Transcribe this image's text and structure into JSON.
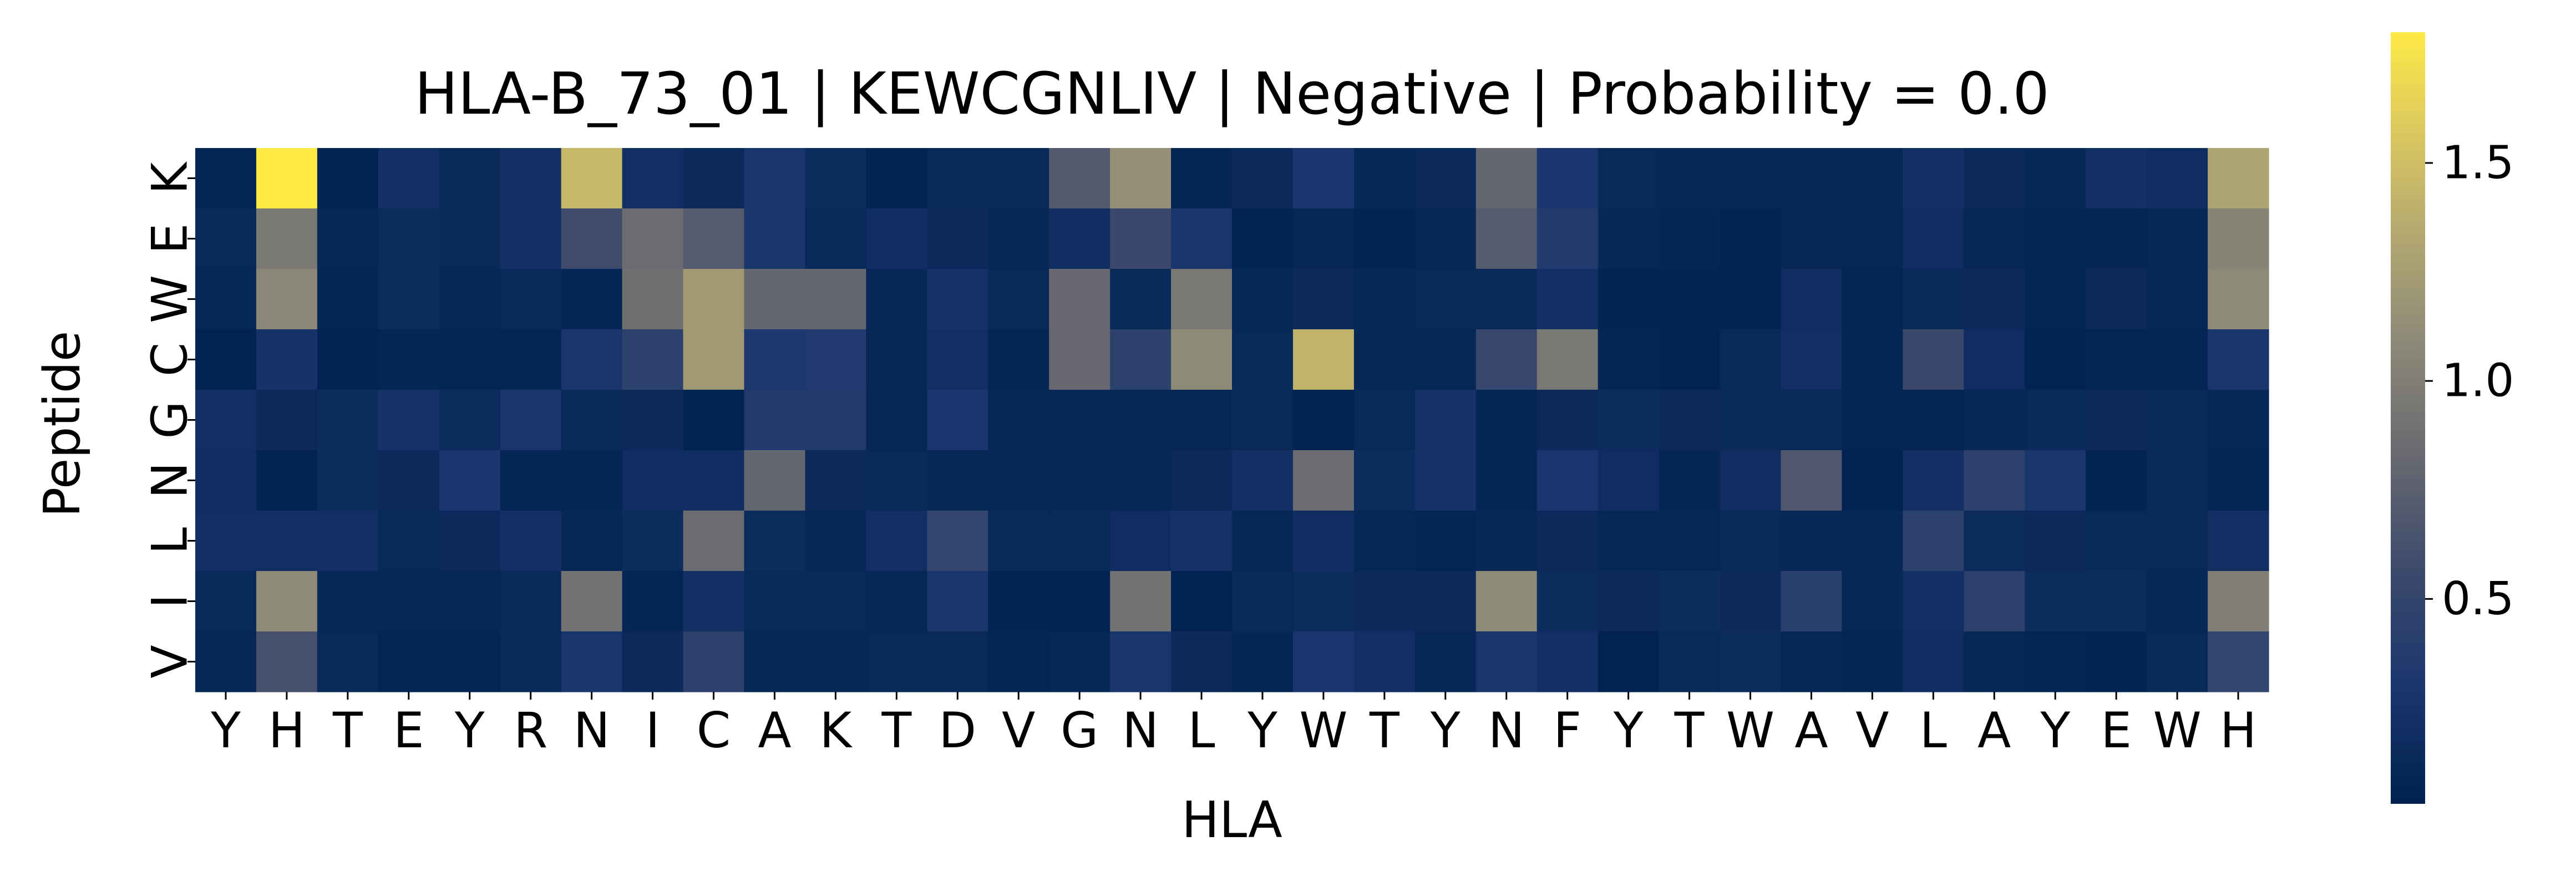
{
  "chart_data": {
    "type": "heatmap",
    "title": "HLA-B_73_01 | KEWCGNLIV | Negative | Probability = 0.0",
    "xlabel": "HLA",
    "ylabel": "Peptide",
    "x": [
      "Y",
      "H",
      "T",
      "E",
      "Y",
      "R",
      "N",
      "I",
      "C",
      "A",
      "K",
      "T",
      "D",
      "V",
      "G",
      "N",
      "L",
      "Y",
      "W",
      "T",
      "Y",
      "N",
      "F",
      "Y",
      "T",
      "W",
      "A",
      "V",
      "L",
      "A",
      "Y",
      "E",
      "W",
      "H"
    ],
    "y": [
      "K",
      "E",
      "W",
      "C",
      "G",
      "N",
      "L",
      "I",
      "V"
    ],
    "colorbar": {
      "min": 0.03,
      "max": 1.8,
      "ticks": [
        0.5,
        1.0,
        1.5
      ],
      "tick_labels": [
        "0.5",
        "1.0",
        "1.5"
      ],
      "colormap": "cividis"
    },
    "values": [
      [
        0.08,
        1.8,
        0.06,
        0.22,
        0.12,
        0.22,
        1.45,
        0.2,
        0.14,
        0.28,
        0.16,
        0.06,
        0.12,
        0.12,
        0.7,
        1.15,
        0.08,
        0.14,
        0.3,
        0.1,
        0.14,
        0.8,
        0.3,
        0.12,
        0.1,
        0.1,
        0.1,
        0.1,
        0.22,
        0.14,
        0.1,
        0.22,
        0.18,
        1.3
      ],
      [
        0.12,
        0.95,
        0.1,
        0.16,
        0.12,
        0.22,
        0.58,
        0.85,
        0.72,
        0.28,
        0.12,
        0.18,
        0.14,
        0.1,
        0.18,
        0.55,
        0.28,
        0.06,
        0.1,
        0.06,
        0.1,
        0.72,
        0.36,
        0.1,
        0.08,
        0.06,
        0.1,
        0.1,
        0.18,
        0.1,
        0.08,
        0.08,
        0.1,
        1.05
      ],
      [
        0.1,
        1.08,
        0.08,
        0.16,
        0.1,
        0.12,
        0.08,
        0.88,
        1.22,
        0.8,
        0.8,
        0.1,
        0.24,
        0.12,
        0.82,
        0.12,
        0.95,
        0.1,
        0.14,
        0.1,
        0.12,
        0.12,
        0.22,
        0.06,
        0.06,
        0.06,
        0.18,
        0.08,
        0.12,
        0.14,
        0.08,
        0.14,
        0.1,
        1.1
      ],
      [
        0.06,
        0.25,
        0.06,
        0.08,
        0.08,
        0.08,
        0.28,
        0.45,
        1.22,
        0.32,
        0.34,
        0.1,
        0.2,
        0.08,
        0.82,
        0.45,
        1.1,
        0.12,
        1.42,
        0.1,
        0.1,
        0.52,
        0.95,
        0.08,
        0.06,
        0.12,
        0.2,
        0.08,
        0.55,
        0.18,
        0.06,
        0.08,
        0.08,
        0.28
      ],
      [
        0.2,
        0.14,
        0.16,
        0.25,
        0.16,
        0.28,
        0.12,
        0.14,
        0.04,
        0.35,
        0.35,
        0.1,
        0.3,
        0.1,
        0.1,
        0.1,
        0.1,
        0.12,
        0.06,
        0.12,
        0.25,
        0.08,
        0.14,
        0.16,
        0.14,
        0.12,
        0.12,
        0.08,
        0.08,
        0.1,
        0.12,
        0.14,
        0.12,
        0.1
      ],
      [
        0.18,
        0.06,
        0.16,
        0.14,
        0.3,
        0.08,
        0.08,
        0.18,
        0.18,
        0.8,
        0.14,
        0.12,
        0.1,
        0.1,
        0.1,
        0.1,
        0.14,
        0.2,
        0.85,
        0.16,
        0.25,
        0.08,
        0.3,
        0.18,
        0.08,
        0.18,
        0.68,
        0.06,
        0.22,
        0.45,
        0.28,
        0.06,
        0.12,
        0.08
      ],
      [
        0.2,
        0.2,
        0.2,
        0.12,
        0.14,
        0.22,
        0.1,
        0.16,
        0.85,
        0.16,
        0.1,
        0.2,
        0.5,
        0.12,
        0.12,
        0.18,
        0.24,
        0.1,
        0.18,
        0.1,
        0.08,
        0.1,
        0.14,
        0.1,
        0.1,
        0.12,
        0.1,
        0.1,
        0.45,
        0.16,
        0.14,
        0.12,
        0.12,
        0.2
      ],
      [
        0.12,
        1.1,
        0.1,
        0.1,
        0.1,
        0.12,
        0.9,
        0.08,
        0.22,
        0.12,
        0.12,
        0.1,
        0.28,
        0.06,
        0.06,
        0.9,
        0.06,
        0.12,
        0.16,
        0.14,
        0.14,
        1.1,
        0.16,
        0.14,
        0.16,
        0.14,
        0.42,
        0.1,
        0.2,
        0.45,
        0.16,
        0.16,
        0.1,
        1.0
      ],
      [
        0.1,
        0.62,
        0.12,
        0.08,
        0.08,
        0.12,
        0.28,
        0.14,
        0.45,
        0.1,
        0.1,
        0.12,
        0.12,
        0.08,
        0.1,
        0.28,
        0.14,
        0.08,
        0.3,
        0.2,
        0.1,
        0.28,
        0.2,
        0.06,
        0.12,
        0.16,
        0.1,
        0.08,
        0.18,
        0.1,
        0.08,
        0.06,
        0.12,
        0.5
      ]
    ]
  }
}
